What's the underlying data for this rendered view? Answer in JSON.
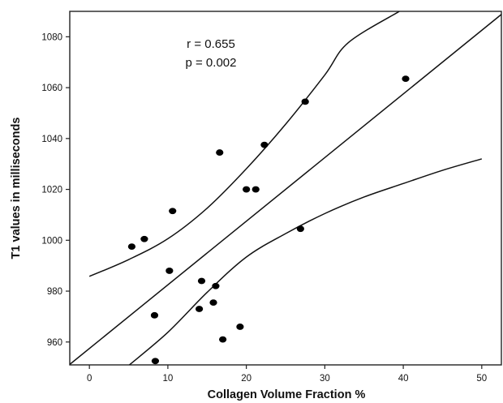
{
  "chart_data": {
    "type": "scatter",
    "xlabel": "Collagen Volume Fraction  %",
    "ylabel": "T1 values in milliseconds",
    "xlim": [
      -2.5,
      52.5
    ],
    "ylim": [
      951,
      1090
    ],
    "x_ticks": [
      0,
      10,
      20,
      30,
      40,
      50
    ],
    "y_ticks": [
      960,
      980,
      1000,
      1020,
      1040,
      1060,
      1080
    ],
    "annotations": [
      "r = 0.655",
      "p = 0.002"
    ],
    "grid": false,
    "legend": "none",
    "points": [
      {
        "x": 5.4,
        "y": 997.5
      },
      {
        "x": 7.0,
        "y": 1000.5
      },
      {
        "x": 8.3,
        "y": 970.5
      },
      {
        "x": 8.4,
        "y": 952.5
      },
      {
        "x": 10.2,
        "y": 988.0
      },
      {
        "x": 10.6,
        "y": 1011.5
      },
      {
        "x": 14.0,
        "y": 973.0
      },
      {
        "x": 14.3,
        "y": 984.0
      },
      {
        "x": 15.8,
        "y": 975.5
      },
      {
        "x": 16.1,
        "y": 982.0
      },
      {
        "x": 16.6,
        "y": 1034.5
      },
      {
        "x": 17.0,
        "y": 961.0
      },
      {
        "x": 19.2,
        "y": 966.0
      },
      {
        "x": 20.0,
        "y": 1020.0
      },
      {
        "x": 21.2,
        "y": 1020.0
      },
      {
        "x": 22.3,
        "y": 1037.5
      },
      {
        "x": 26.9,
        "y": 1004.5
      },
      {
        "x": 27.5,
        "y": 1054.5
      },
      {
        "x": 40.3,
        "y": 1063.5
      }
    ],
    "fit_line": [
      {
        "x": -2.5,
        "y": 951.2
      },
      {
        "x": 52.5,
        "y": 1088.8
      }
    ],
    "upper_ci": [
      {
        "x": 0,
        "y": 985.8
      },
      {
        "x": 5,
        "y": 992.4
      },
      {
        "x": 10,
        "y": 1000.6
      },
      {
        "x": 15,
        "y": 1012.6
      },
      {
        "x": 20,
        "y": 1028.1
      },
      {
        "x": 25,
        "y": 1045.6
      },
      {
        "x": 30,
        "y": 1065.0
      },
      {
        "x": 33,
        "y": 1077.7
      },
      {
        "x": 39.5,
        "y": 1090.0
      }
    ],
    "lower_ci": [
      {
        "x": 5.1,
        "y": 951.0
      },
      {
        "x": 10,
        "y": 963.8
      },
      {
        "x": 15,
        "y": 979.5
      },
      {
        "x": 20,
        "y": 993.4
      },
      {
        "x": 25,
        "y": 1002.6
      },
      {
        "x": 30,
        "y": 1010.5
      },
      {
        "x": 35,
        "y": 1017.0
      },
      {
        "x": 40,
        "y": 1022.3
      },
      {
        "x": 45,
        "y": 1027.5
      },
      {
        "x": 50,
        "y": 1032.0
      }
    ]
  }
}
